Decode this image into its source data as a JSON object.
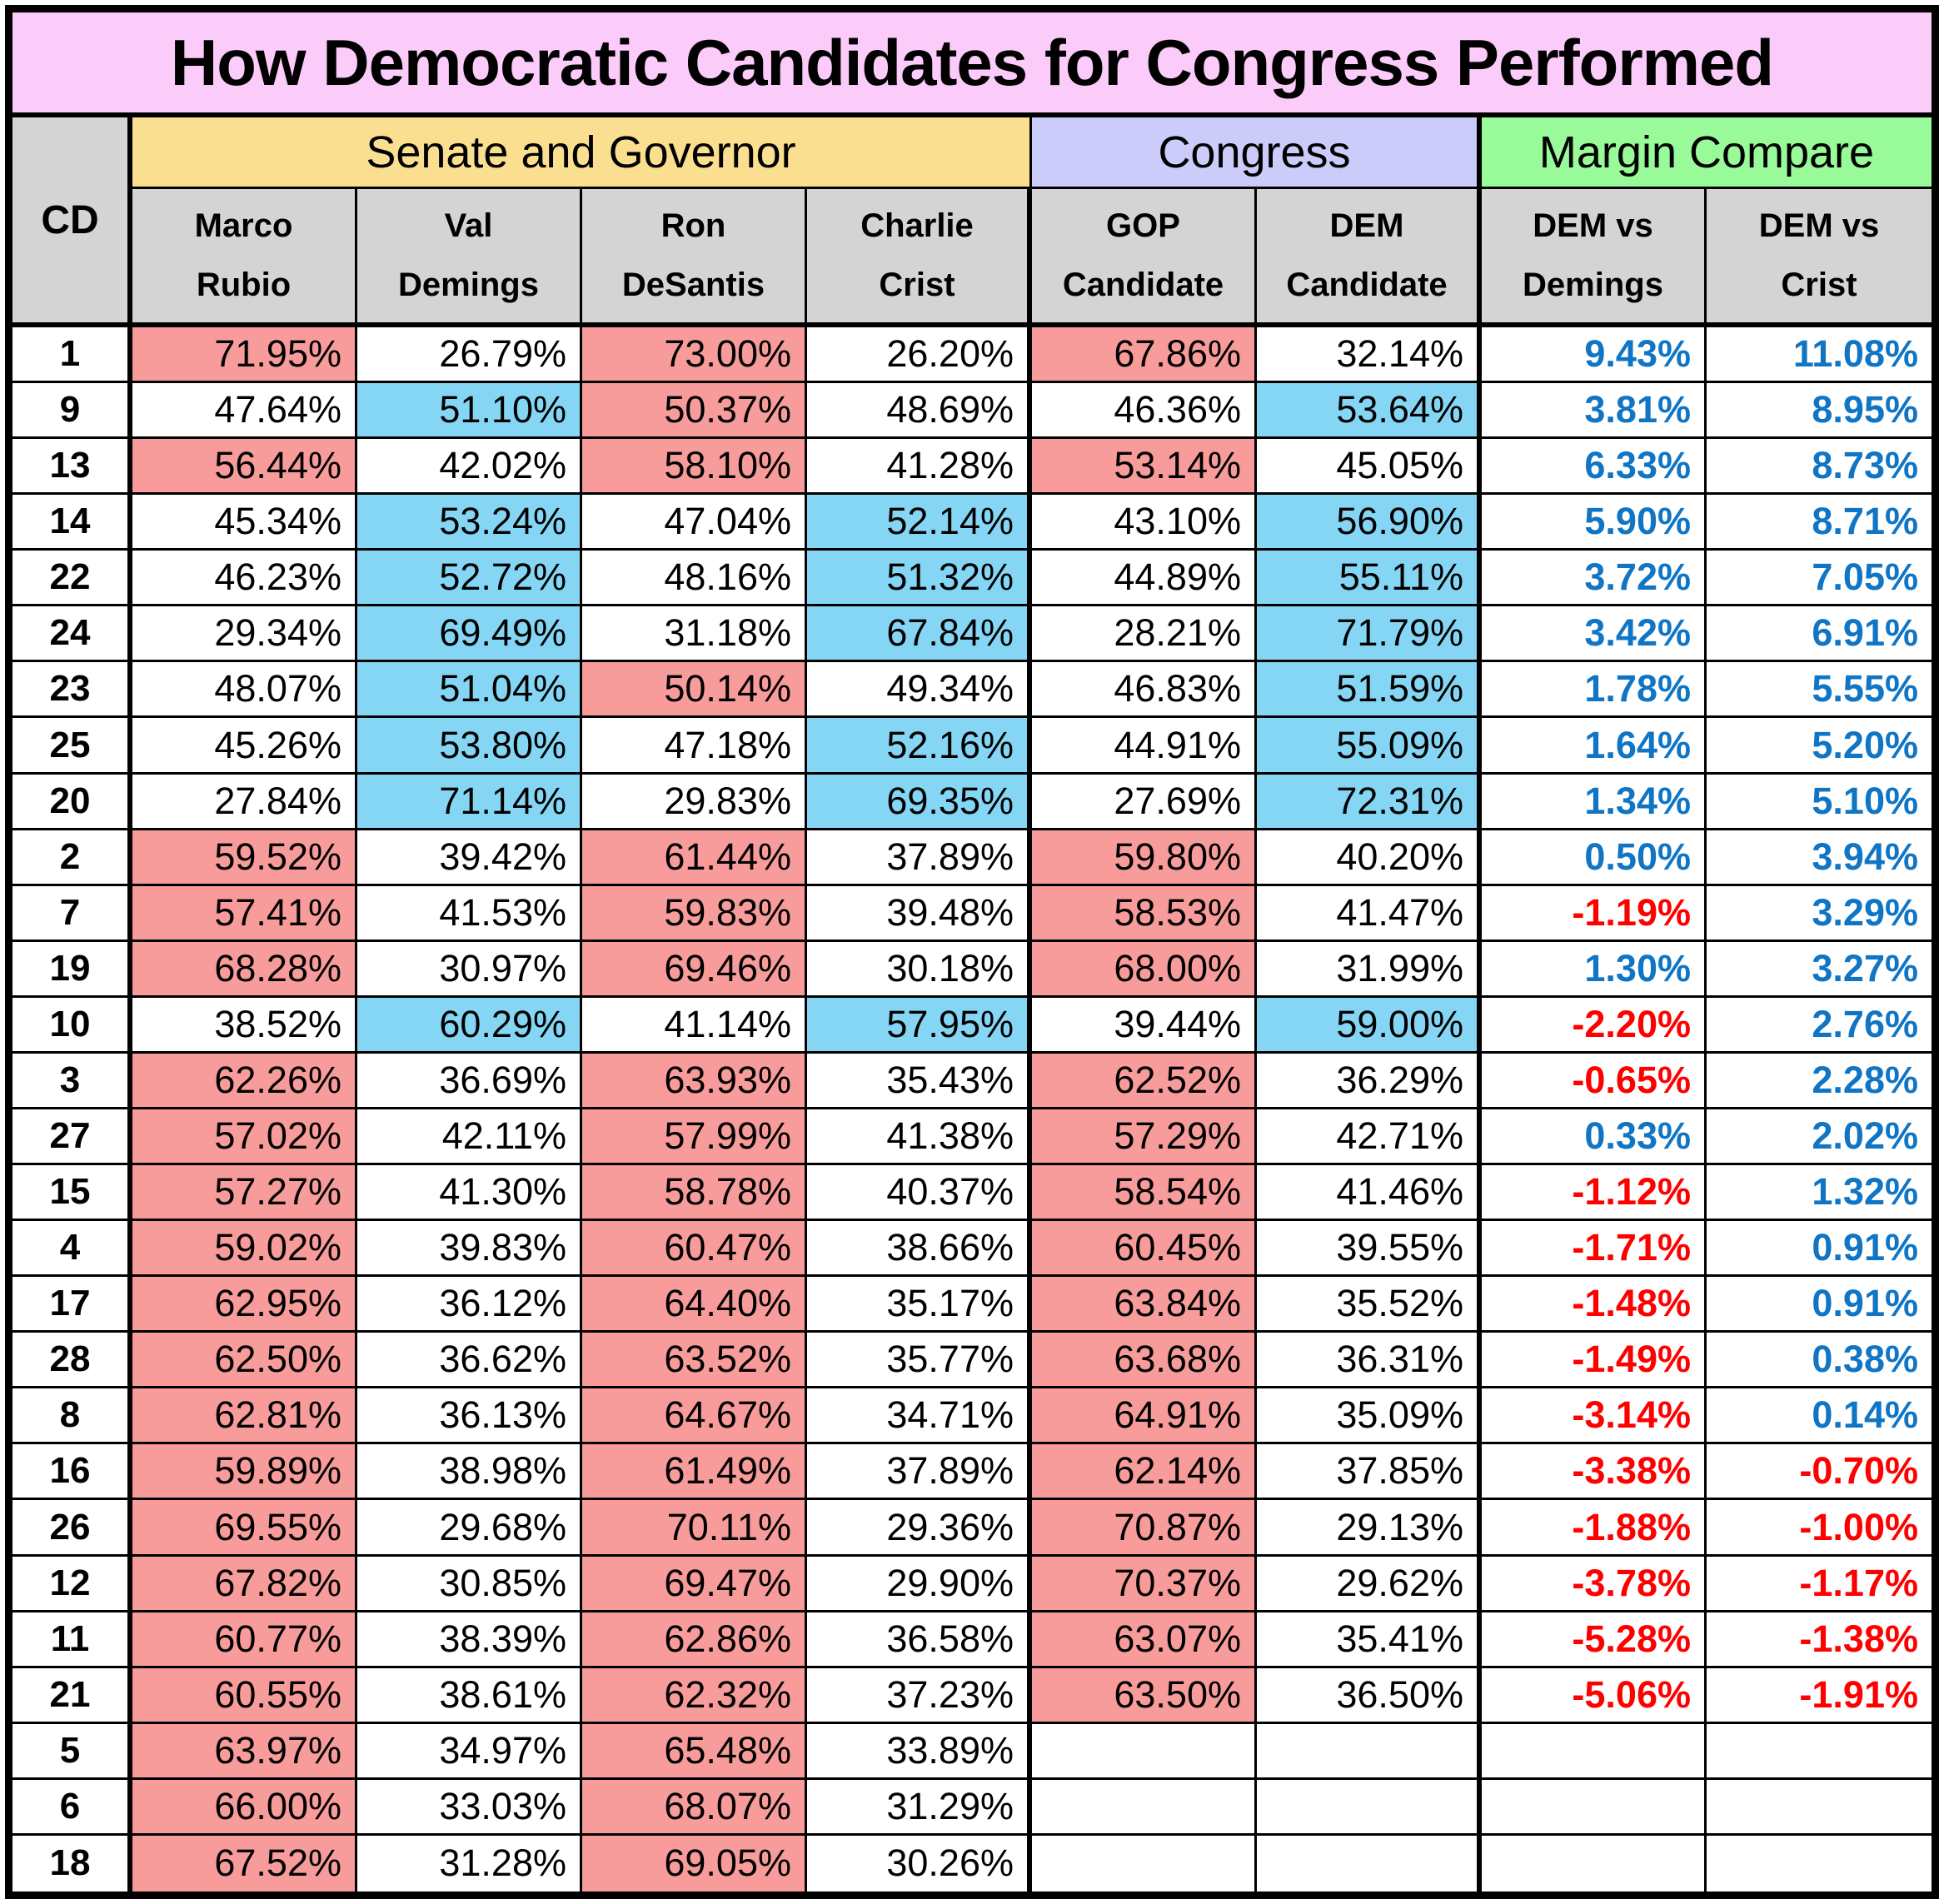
{
  "chart_data": {
    "type": "table",
    "title": "How Democratic Candidates for Congress Performed",
    "cd_header": "CD",
    "column_groups": [
      {
        "label": "Senate and Governor",
        "span": 4
      },
      {
        "label": "Congress",
        "span": 2
      },
      {
        "label": "Margin Compare",
        "span": 2
      }
    ],
    "columns": [
      {
        "key": "rubio",
        "line1": "Marco",
        "line2": "Rubio",
        "party": "gop"
      },
      {
        "key": "demings",
        "line1": "Val",
        "line2": "Demings",
        "party": "dem"
      },
      {
        "key": "desantis",
        "line1": "Ron",
        "line2": "DeSantis",
        "party": "gop"
      },
      {
        "key": "crist",
        "line1": "Charlie",
        "line2": "Crist",
        "party": "dem"
      },
      {
        "key": "gop",
        "line1": "GOP",
        "line2": "Candidate",
        "party": "gop"
      },
      {
        "key": "dem",
        "line1": "DEM",
        "line2": "Candidate",
        "party": "dem"
      },
      {
        "key": "vs_demings",
        "line1": "DEM vs",
        "line2": "Demings",
        "party": "margin"
      },
      {
        "key": "vs_crist",
        "line1": "DEM vs",
        "line2": "Crist",
        "party": "margin"
      }
    ],
    "colors": {
      "title_bg": "#FBCBFA",
      "senate_bg": "#FBDF90",
      "congress_bg": "#CCCCFB",
      "margin_bg": "#98FA98",
      "header_bg": "#D4D4D4",
      "gop_win_fill": "#F89B9B",
      "dem_win_fill": "#85D6F4",
      "positive_margin_text": "#0F75C4",
      "negative_margin_text": "#FE0000"
    },
    "rows": [
      {
        "cd": "1",
        "rubio": "71.95%",
        "demings": "26.79%",
        "desantis": "73.00%",
        "crist": "26.20%",
        "gop": "67.86%",
        "dem": "32.14%",
        "vs_demings": "9.43%",
        "vs_crist": "11.08%"
      },
      {
        "cd": "9",
        "rubio": "47.64%",
        "demings": "51.10%",
        "desantis": "50.37%",
        "crist": "48.69%",
        "gop": "46.36%",
        "dem": "53.64%",
        "vs_demings": "3.81%",
        "vs_crist": "8.95%"
      },
      {
        "cd": "13",
        "rubio": "56.44%",
        "demings": "42.02%",
        "desantis": "58.10%",
        "crist": "41.28%",
        "gop": "53.14%",
        "dem": "45.05%",
        "vs_demings": "6.33%",
        "vs_crist": "8.73%"
      },
      {
        "cd": "14",
        "rubio": "45.34%",
        "demings": "53.24%",
        "desantis": "47.04%",
        "crist": "52.14%",
        "gop": "43.10%",
        "dem": "56.90%",
        "vs_demings": "5.90%",
        "vs_crist": "8.71%"
      },
      {
        "cd": "22",
        "rubio": "46.23%",
        "demings": "52.72%",
        "desantis": "48.16%",
        "crist": "51.32%",
        "gop": "44.89%",
        "dem": "55.11%",
        "vs_demings": "3.72%",
        "vs_crist": "7.05%"
      },
      {
        "cd": "24",
        "rubio": "29.34%",
        "demings": "69.49%",
        "desantis": "31.18%",
        "crist": "67.84%",
        "gop": "28.21%",
        "dem": "71.79%",
        "vs_demings": "3.42%",
        "vs_crist": "6.91%"
      },
      {
        "cd": "23",
        "rubio": "48.07%",
        "demings": "51.04%",
        "desantis": "50.14%",
        "crist": "49.34%",
        "gop": "46.83%",
        "dem": "51.59%",
        "vs_demings": "1.78%",
        "vs_crist": "5.55%"
      },
      {
        "cd": "25",
        "rubio": "45.26%",
        "demings": "53.80%",
        "desantis": "47.18%",
        "crist": "52.16%",
        "gop": "44.91%",
        "dem": "55.09%",
        "vs_demings": "1.64%",
        "vs_crist": "5.20%"
      },
      {
        "cd": "20",
        "rubio": "27.84%",
        "demings": "71.14%",
        "desantis": "29.83%",
        "crist": "69.35%",
        "gop": "27.69%",
        "dem": "72.31%",
        "vs_demings": "1.34%",
        "vs_crist": "5.10%"
      },
      {
        "cd": "2",
        "rubio": "59.52%",
        "demings": "39.42%",
        "desantis": "61.44%",
        "crist": "37.89%",
        "gop": "59.80%",
        "dem": "40.20%",
        "vs_demings": "0.50%",
        "vs_crist": "3.94%"
      },
      {
        "cd": "7",
        "rubio": "57.41%",
        "demings": "41.53%",
        "desantis": "59.83%",
        "crist": "39.48%",
        "gop": "58.53%",
        "dem": "41.47%",
        "vs_demings": "-1.19%",
        "vs_crist": "3.29%"
      },
      {
        "cd": "19",
        "rubio": "68.28%",
        "demings": "30.97%",
        "desantis": "69.46%",
        "crist": "30.18%",
        "gop": "68.00%",
        "dem": "31.99%",
        "vs_demings": "1.30%",
        "vs_crist": "3.27%"
      },
      {
        "cd": "10",
        "rubio": "38.52%",
        "demings": "60.29%",
        "desantis": "41.14%",
        "crist": "57.95%",
        "gop": "39.44%",
        "dem": "59.00%",
        "vs_demings": "-2.20%",
        "vs_crist": "2.76%"
      },
      {
        "cd": "3",
        "rubio": "62.26%",
        "demings": "36.69%",
        "desantis": "63.93%",
        "crist": "35.43%",
        "gop": "62.52%",
        "dem": "36.29%",
        "vs_demings": "-0.65%",
        "vs_crist": "2.28%"
      },
      {
        "cd": "27",
        "rubio": "57.02%",
        "demings": "42.11%",
        "desantis": "57.99%",
        "crist": "41.38%",
        "gop": "57.29%",
        "dem": "42.71%",
        "vs_demings": "0.33%",
        "vs_crist": "2.02%"
      },
      {
        "cd": "15",
        "rubio": "57.27%",
        "demings": "41.30%",
        "desantis": "58.78%",
        "crist": "40.37%",
        "gop": "58.54%",
        "dem": "41.46%",
        "vs_demings": "-1.12%",
        "vs_crist": "1.32%"
      },
      {
        "cd": "4",
        "rubio": "59.02%",
        "demings": "39.83%",
        "desantis": "60.47%",
        "crist": "38.66%",
        "gop": "60.45%",
        "dem": "39.55%",
        "vs_demings": "-1.71%",
        "vs_crist": "0.91%"
      },
      {
        "cd": "17",
        "rubio": "62.95%",
        "demings": "36.12%",
        "desantis": "64.40%",
        "crist": "35.17%",
        "gop": "63.84%",
        "dem": "35.52%",
        "vs_demings": "-1.48%",
        "vs_crist": "0.91%"
      },
      {
        "cd": "28",
        "rubio": "62.50%",
        "demings": "36.62%",
        "desantis": "63.52%",
        "crist": "35.77%",
        "gop": "63.68%",
        "dem": "36.31%",
        "vs_demings": "-1.49%",
        "vs_crist": "0.38%"
      },
      {
        "cd": "8",
        "rubio": "62.81%",
        "demings": "36.13%",
        "desantis": "64.67%",
        "crist": "34.71%",
        "gop": "64.91%",
        "dem": "35.09%",
        "vs_demings": "-3.14%",
        "vs_crist": "0.14%"
      },
      {
        "cd": "16",
        "rubio": "59.89%",
        "demings": "38.98%",
        "desantis": "61.49%",
        "crist": "37.89%",
        "gop": "62.14%",
        "dem": "37.85%",
        "vs_demings": "-3.38%",
        "vs_crist": "-0.70%"
      },
      {
        "cd": "26",
        "rubio": "69.55%",
        "demings": "29.68%",
        "desantis": "70.11%",
        "crist": "29.36%",
        "gop": "70.87%",
        "dem": "29.13%",
        "vs_demings": "-1.88%",
        "vs_crist": "-1.00%"
      },
      {
        "cd": "12",
        "rubio": "67.82%",
        "demings": "30.85%",
        "desantis": "69.47%",
        "crist": "29.90%",
        "gop": "70.37%",
        "dem": "29.62%",
        "vs_demings": "-3.78%",
        "vs_crist": "-1.17%"
      },
      {
        "cd": "11",
        "rubio": "60.77%",
        "demings": "38.39%",
        "desantis": "62.86%",
        "crist": "36.58%",
        "gop": "63.07%",
        "dem": "35.41%",
        "vs_demings": "-5.28%",
        "vs_crist": "-1.38%"
      },
      {
        "cd": "21",
        "rubio": "60.55%",
        "demings": "38.61%",
        "desantis": "62.32%",
        "crist": "37.23%",
        "gop": "63.50%",
        "dem": "36.50%",
        "vs_demings": "-5.06%",
        "vs_crist": "-1.91%"
      },
      {
        "cd": "5",
        "rubio": "63.97%",
        "demings": "34.97%",
        "desantis": "65.48%",
        "crist": "33.89%",
        "gop": "",
        "dem": "",
        "vs_demings": "",
        "vs_crist": ""
      },
      {
        "cd": "6",
        "rubio": "66.00%",
        "demings": "33.03%",
        "desantis": "68.07%",
        "crist": "31.29%",
        "gop": "",
        "dem": "",
        "vs_demings": "",
        "vs_crist": ""
      },
      {
        "cd": "18",
        "rubio": "67.52%",
        "demings": "31.28%",
        "desantis": "69.05%",
        "crist": "30.26%",
        "gop": "",
        "dem": "",
        "vs_demings": "",
        "vs_crist": ""
      }
    ]
  }
}
